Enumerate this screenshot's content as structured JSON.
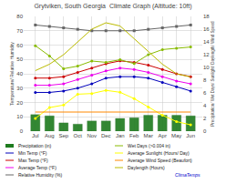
{
  "chart_data": {
    "type": "line",
    "title": "Grytviken, South Georgia  Climate Graph (Altitude: 10ft)",
    "categories": [
      "Jul",
      "Aug",
      "Sep",
      "Oct",
      "Nov",
      "Dec",
      "Jan",
      "Feb",
      "Mar",
      "Apr",
      "May",
      "Jun"
    ],
    "ylabel": "Temperature/ Relative Humidity",
    "y2label": "Precipitation/ Wet Days/ Sunlight/ Daylength/ Wind Speed",
    "ylim": [
      0,
      80
    ],
    "yticks": [
      0,
      10,
      20,
      30,
      40,
      50,
      60,
      70,
      80
    ],
    "y2lim": [
      0,
      18
    ],
    "y2ticks": [
      0,
      2,
      4,
      6,
      8,
      10,
      12,
      14,
      16,
      18
    ],
    "grid": true,
    "legend": "bottom",
    "series": [
      {
        "name": "Precipitation (in)",
        "type": "bar",
        "axis": "y2",
        "color": "#1e7b1e",
        "values": [
          2.6,
          2.4,
          1.3,
          1.1,
          1.6,
          1.6,
          2.0,
          2.1,
          2.5,
          2.5,
          2.5,
          2.4
        ]
      },
      {
        "name": "Min Temp (°F)",
        "type": "line",
        "axis": "y",
        "color": "#0000bb",
        "marker": "circle",
        "values": [
          27,
          27,
          28,
          30,
          33,
          37,
          38,
          38,
          37,
          34,
          31,
          28
        ]
      },
      {
        "name": "Max Temp (°F)",
        "type": "line",
        "axis": "y",
        "color": "#cc0000",
        "marker": "circle",
        "values": [
          37,
          37,
          38,
          41,
          44,
          47,
          49,
          48,
          46,
          43,
          40,
          38
        ]
      },
      {
        "name": "Average Temp (°F)",
        "type": "line",
        "axis": "y",
        "color": "#ee00ee",
        "marker": "circle",
        "values": [
          32,
          32,
          33,
          36,
          39,
          42,
          44,
          43,
          41,
          38,
          35,
          33
        ]
      },
      {
        "name": "Relative Humidity (%)",
        "type": "line",
        "axis": "y",
        "color": "#666666",
        "marker": "square",
        "values": [
          74,
          73,
          72,
          71,
          70,
          70,
          70,
          70,
          71,
          72,
          73,
          74
        ]
      },
      {
        "name": "Wet Days (>0.004 in)",
        "type": "line",
        "axis": "y2",
        "color": "#88bb00",
        "marker": "circle",
        "values": [
          13.4,
          11.8,
          9.8,
          10.2,
          11.0,
          10.8,
          11.2,
          10.6,
          12.0,
          12.8,
          13.0,
          13.2
        ]
      },
      {
        "name": "Average Sunlight (Hours/ Day)",
        "type": "line",
        "axis": "y2",
        "color": "#ffff00",
        "marker": "circle",
        "values": [
          2.0,
          3.7,
          4.1,
          5.8,
          5.9,
          6.4,
          6.1,
          5.1,
          3.8,
          2.5,
          1.5,
          1.0
        ]
      },
      {
        "name": "Average Wind Speed (Beaufort)",
        "type": "line",
        "axis": "y2",
        "color": "#ff8800",
        "marker": "none",
        "values": [
          3.0,
          3.0,
          3.0,
          3.0,
          3.0,
          3.0,
          3.0,
          3.0,
          3.0,
          3.0,
          3.0,
          3.0
        ]
      },
      {
        "name": "Daylength (Hours)",
        "type": "line",
        "axis": "y2",
        "color": "#bbbb00",
        "marker": "none",
        "values": [
          9.5,
          10.5,
          12.0,
          14.0,
          16.0,
          17.0,
          16.5,
          14.5,
          12.5,
          10.5,
          9.0,
          8.5
        ]
      }
    ],
    "annotations": [
      {
        "text": "ClimaTemps",
        "color": "#0000cc"
      }
    ]
  }
}
